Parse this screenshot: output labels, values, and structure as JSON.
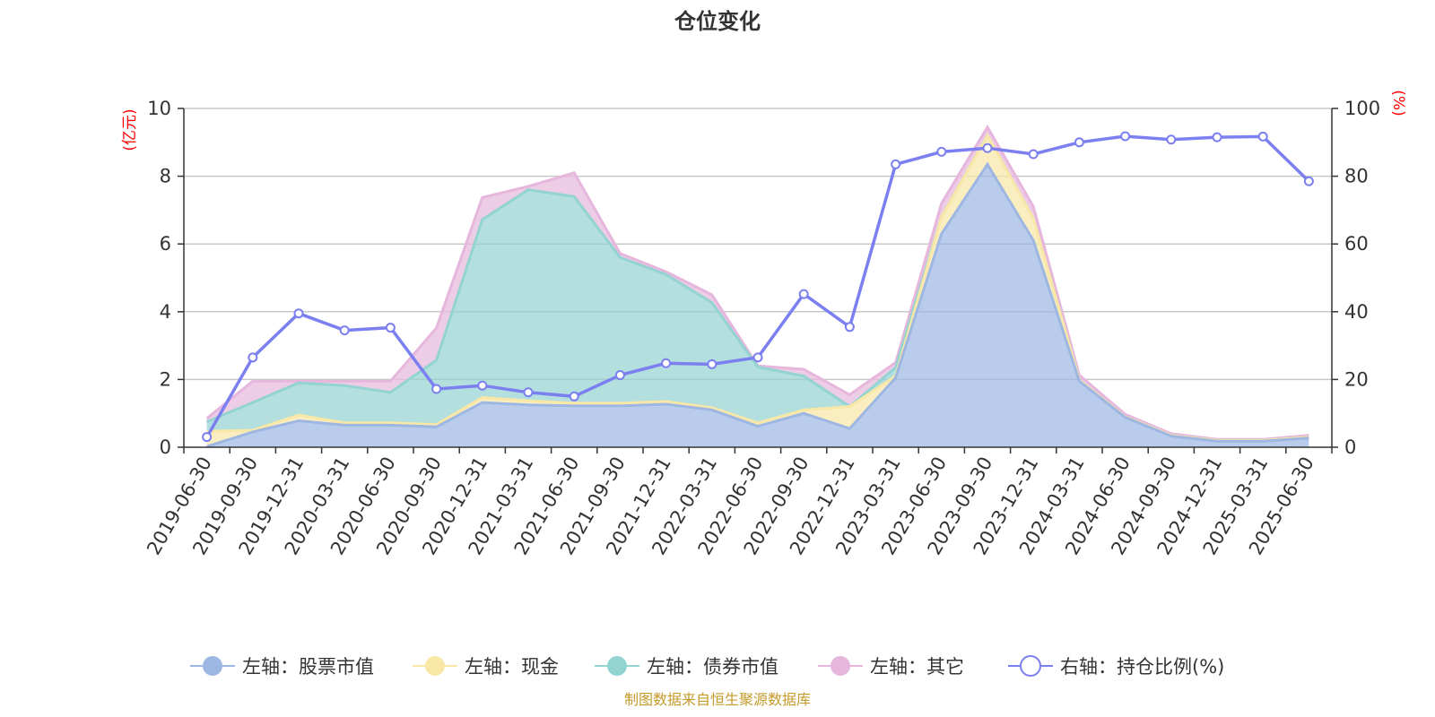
{
  "title": "仓位变化",
  "source": "制图数据来自恒生聚源数据库",
  "legend": [
    "左轴：股票市值",
    "左轴：现金",
    "左轴：债券市值",
    "左轴：其它",
    "右轴：持仓比例(%)"
  ],
  "colors": {
    "stock": "#9db7e2",
    "cash": "#f8e7a6",
    "bond": "#93d3d2",
    "other": "#e6b6dc",
    "ratio": "#7b7ff0",
    "unit": "#ff0000",
    "source": "#c49a2b"
  },
  "chart_data": {
    "type": "area",
    "title": "仓位变化",
    "x": [
      "2019-06-30",
      "2019-09-30",
      "2019-12-31",
      "2020-03-31",
      "2020-06-30",
      "2020-09-30",
      "2020-12-31",
      "2021-03-31",
      "2021-06-30",
      "2021-09-30",
      "2021-12-31",
      "2022-03-31",
      "2022-06-30",
      "2022-09-30",
      "2022-12-31",
      "2023-03-31",
      "2023-06-30",
      "2023-09-30",
      "2023-12-31",
      "2024-03-31",
      "2024-06-30",
      "2024-09-30",
      "2024-12-31",
      "2025-03-31",
      "2025-06-30"
    ],
    "left_axis": {
      "unit": "(亿元)",
      "ylim": [
        0,
        10
      ],
      "ticks": [
        0,
        2,
        4,
        6,
        8,
        10
      ]
    },
    "right_axis": {
      "unit": "(%)",
      "ylim": [
        0,
        100
      ],
      "ticks": [
        0,
        20,
        40,
        60,
        80,
        100
      ]
    },
    "stacked": true,
    "grid": true,
    "legend_position": "bottom",
    "series": [
      {
        "name": "左轴：股票市值",
        "axis": "left",
        "values": [
          0.02,
          0.45,
          0.78,
          0.65,
          0.65,
          0.6,
          1.32,
          1.25,
          1.22,
          1.22,
          1.27,
          1.1,
          0.62,
          1.0,
          0.55,
          2.05,
          6.3,
          8.35,
          6.1,
          1.95,
          0.88,
          0.33,
          0.18,
          0.18,
          0.27
        ]
      },
      {
        "name": "左轴：现金",
        "axis": "left",
        "values": [
          0.45,
          0.05,
          0.17,
          0.07,
          0.07,
          0.07,
          0.15,
          0.12,
          0.08,
          0.08,
          0.08,
          0.07,
          0.1,
          0.1,
          0.65,
          0.05,
          0.5,
          0.85,
          0.65,
          0.03,
          0.02,
          0.02,
          0.02,
          0.02,
          0.03
        ]
      },
      {
        "name": "左轴：债券市值",
        "axis": "left",
        "values": [
          0.28,
          0.82,
          0.95,
          1.1,
          0.9,
          1.9,
          5.25,
          6.23,
          6.1,
          4.3,
          3.75,
          3.1,
          1.65,
          1.0,
          0.0,
          0.25,
          0.0,
          0.0,
          0.0,
          0.0,
          0.0,
          0.0,
          0.0,
          0.0,
          0.0
        ]
      },
      {
        "name": "左轴：其它",
        "axis": "left",
        "values": [
          0.1,
          0.63,
          0.05,
          0.13,
          0.33,
          0.95,
          0.65,
          0.1,
          0.7,
          0.12,
          0.08,
          0.23,
          0.03,
          0.2,
          0.35,
          0.15,
          0.4,
          0.25,
          0.35,
          0.15,
          0.07,
          0.05,
          0.03,
          0.03,
          0.05
        ]
      },
      {
        "name": "右轴：持仓比例(%)",
        "axis": "right",
        "type": "line",
        "values": [
          3,
          26.5,
          39.5,
          34.5,
          35.3,
          17.2,
          18.2,
          16.2,
          15.0,
          21.3,
          24.8,
          24.5,
          26.5,
          45.2,
          35.5,
          83.5,
          87.2,
          88.3,
          86.5,
          90.0,
          91.8,
          90.8,
          91.5,
          91.7,
          78.5
        ]
      }
    ]
  }
}
